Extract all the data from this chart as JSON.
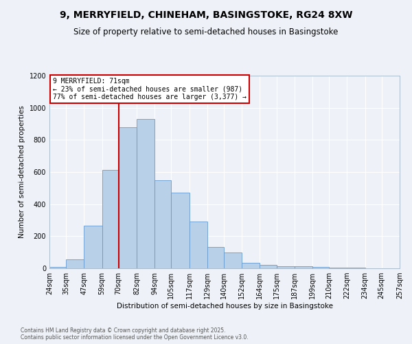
{
  "title": "9, MERRYFIELD, CHINEHAM, BASINGSTOKE, RG24 8XW",
  "subtitle": "Size of property relative to semi-detached houses in Basingstoke",
  "xlabel": "Distribution of semi-detached houses by size in Basingstoke",
  "ylabel": "Number of semi-detached properties",
  "bin_labels": [
    "24sqm",
    "35sqm",
    "47sqm",
    "59sqm",
    "70sqm",
    "82sqm",
    "94sqm",
    "105sqm",
    "117sqm",
    "129sqm",
    "140sqm",
    "152sqm",
    "164sqm",
    "175sqm",
    "187sqm",
    "199sqm",
    "210sqm",
    "222sqm",
    "234sqm",
    "245sqm",
    "257sqm"
  ],
  "bar_heights": [
    10,
    55,
    265,
    615,
    880,
    930,
    550,
    470,
    290,
    135,
    100,
    35,
    22,
    15,
    12,
    8,
    5,
    3,
    1,
    0
  ],
  "bar_color": "#b8d0e8",
  "bar_edge_color": "#6699cc",
  "property_line_x": 70,
  "ylim": [
    0,
    1200
  ],
  "yticks": [
    0,
    200,
    400,
    600,
    800,
    1000,
    1200
  ],
  "annotation_title": "9 MERRYFIELD: 71sqm",
  "annotation_line1": "← 23% of semi-detached houses are smaller (987)",
  "annotation_line2": "77% of semi-detached houses are larger (3,377) →",
  "annotation_box_color": "#cc0000",
  "footnote1": "Contains HM Land Registry data © Crown copyright and database right 2025.",
  "footnote2": "Contains public sector information licensed under the Open Government Licence v3.0.",
  "background_color": "#eef2f8",
  "grid_color": "#ffffff"
}
